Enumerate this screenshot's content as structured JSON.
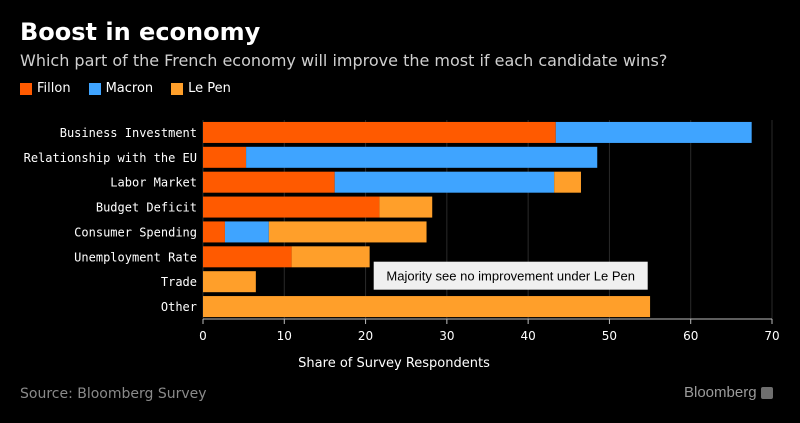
{
  "header": {
    "title": "Boost in economy",
    "subtitle": "Which part of the French economy will improve the most if each candidate wins?"
  },
  "footer": {
    "source": "Source: Bloomberg Survey",
    "brand": "Bloomberg"
  },
  "colors": {
    "Fillon": "#ff5a00",
    "Macron": "#3fa4ff",
    "Le Pen": "#ff9f2a",
    "grid": "#2a2a2a",
    "axis_text": "#ffffff",
    "annotation_bg": "#f0f0f0",
    "annotation_text": "#000000"
  },
  "chart_data": {
    "type": "bar",
    "orientation": "horizontal",
    "stacked": true,
    "title": "Boost in economy",
    "subtitle": "Which part of the French economy will improve the most if each candidate wins?",
    "categories": [
      "Business Investment",
      "Relationship with the EU",
      "Labor Market",
      "Budget Deficit",
      "Consumer Spending",
      "Unemployment Rate",
      "Trade",
      "Other"
    ],
    "series": [
      {
        "name": "Fillon",
        "values": [
          43.4,
          5.3,
          16.2,
          21.7,
          2.7,
          10.9,
          0,
          0
        ]
      },
      {
        "name": "Macron",
        "values": [
          24.1,
          43.2,
          27.0,
          0,
          5.4,
          0,
          0,
          0
        ]
      },
      {
        "name": "Le Pen",
        "values": [
          0,
          0,
          3.3,
          6.5,
          19.4,
          9.6,
          6.5,
          55.0
        ]
      }
    ],
    "xlabel": "Share of Survey Respondents",
    "ylabel": "",
    "xlim": [
      0,
      70
    ],
    "xticks": [
      0,
      10,
      20,
      30,
      40,
      50,
      60,
      70
    ],
    "grid": true,
    "legend": "top-left",
    "annotations": [
      {
        "text": "Majority see no improvement under Le Pen",
        "category": "Trade",
        "x": 21.0
      }
    ]
  }
}
